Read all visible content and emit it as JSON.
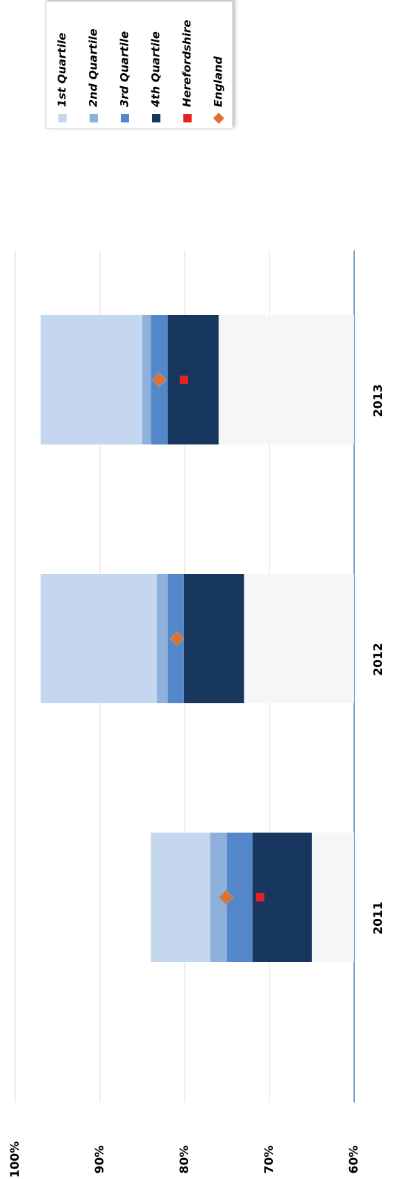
{
  "chart_data": {
    "type": "bar",
    "categories": [
      "2011",
      "2012",
      "2013"
    ],
    "series": [
      {
        "name": "1st Quartile",
        "color": "#c5d7ee",
        "values": [
          7,
          13.7,
          12
        ]
      },
      {
        "name": "2nd Quartile",
        "color": "#8eb0da",
        "values": [
          2,
          1.3,
          1
        ]
      },
      {
        "name": "3rd Quartile",
        "color": "#5387c9",
        "values": [
          3,
          1.9,
          2
        ]
      },
      {
        "name": "4th Quartile",
        "color": "#17375e",
        "values": [
          7,
          7.1,
          6
        ]
      },
      {
        "name": "Herefordshire",
        "color": "#e52222",
        "marker": "square",
        "values": [
          71.1,
          null,
          80.1
        ]
      },
      {
        "name": "England",
        "color": "#e07030",
        "marker": "diamond",
        "values": [
          75.1,
          80.9,
          83.0
        ]
      },
      {
        "color": "#f5f6f8",
        "values": [
          65,
          73,
          76
        ]
      }
    ],
    "ylim": [
      60,
      100
    ],
    "yticks": [
      {
        "value": 60,
        "label": "60%"
      },
      {
        "value": 70,
        "label": "70%"
      },
      {
        "value": 80,
        "label": "80%"
      },
      {
        "value": 90,
        "label": "90%"
      },
      {
        "value": 100,
        "label": "100%"
      }
    ],
    "grid": true,
    "legend": "top-right"
  }
}
